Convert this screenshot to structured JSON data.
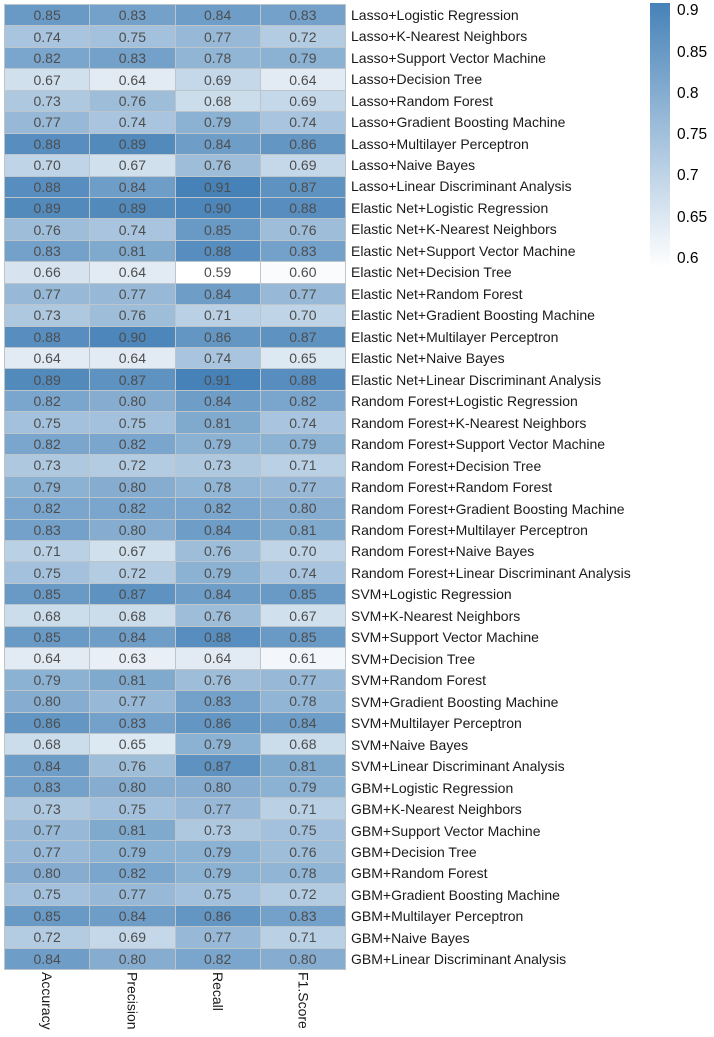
{
  "chart_data": {
    "type": "heatmap",
    "title": "",
    "columns": [
      "Accuracy",
      "Precision",
      "Recall",
      "F1.Score"
    ],
    "rows": [
      {
        "label": "Lasso+Logistic Regression",
        "values": [
          0.85,
          0.83,
          0.84,
          0.83
        ]
      },
      {
        "label": "Lasso+K-Nearest Neighbors",
        "values": [
          0.74,
          0.75,
          0.77,
          0.72
        ]
      },
      {
        "label": "Lasso+Support Vector Machine",
        "values": [
          0.82,
          0.83,
          0.78,
          0.79
        ]
      },
      {
        "label": "Lasso+Decision Tree",
        "values": [
          0.67,
          0.64,
          0.69,
          0.64
        ]
      },
      {
        "label": "Lasso+Random Forest",
        "values": [
          0.73,
          0.76,
          0.68,
          0.69
        ]
      },
      {
        "label": "Lasso+Gradient Boosting Machine",
        "values": [
          0.77,
          0.74,
          0.79,
          0.74
        ]
      },
      {
        "label": "Lasso+Multilayer Perceptron",
        "values": [
          0.88,
          0.89,
          0.84,
          0.86
        ]
      },
      {
        "label": "Lasso+Naive Bayes",
        "values": [
          0.7,
          0.67,
          0.76,
          0.69
        ]
      },
      {
        "label": "Lasso+Linear Discriminant Analysis",
        "values": [
          0.88,
          0.84,
          0.91,
          0.87
        ]
      },
      {
        "label": "Elastic Net+Logistic Regression",
        "values": [
          0.89,
          0.89,
          0.9,
          0.88
        ]
      },
      {
        "label": "Elastic Net+K-Nearest Neighbors",
        "values": [
          0.76,
          0.74,
          0.85,
          0.76
        ]
      },
      {
        "label": "Elastic Net+Support Vector Machine",
        "values": [
          0.83,
          0.81,
          0.88,
          0.83
        ]
      },
      {
        "label": "Elastic Net+Decision Tree",
        "values": [
          0.66,
          0.64,
          0.59,
          0.6
        ]
      },
      {
        "label": "Elastic Net+Random Forest",
        "values": [
          0.77,
          0.77,
          0.84,
          0.77
        ]
      },
      {
        "label": "Elastic Net+Gradient Boosting Machine",
        "values": [
          0.73,
          0.76,
          0.71,
          0.7
        ]
      },
      {
        "label": "Elastic Net+Multilayer Perceptron",
        "values": [
          0.88,
          0.9,
          0.86,
          0.87
        ]
      },
      {
        "label": "Elastic Net+Naive Bayes",
        "values": [
          0.64,
          0.64,
          0.74,
          0.65
        ]
      },
      {
        "label": "Elastic Net+Linear Discriminant Analysis",
        "values": [
          0.89,
          0.87,
          0.91,
          0.88
        ]
      },
      {
        "label": "Random Forest+Logistic Regression",
        "values": [
          0.82,
          0.8,
          0.84,
          0.82
        ]
      },
      {
        "label": "Random Forest+K-Nearest Neighbors",
        "values": [
          0.75,
          0.75,
          0.81,
          0.74
        ]
      },
      {
        "label": "Random Forest+Support Vector Machine",
        "values": [
          0.82,
          0.82,
          0.79,
          0.79
        ]
      },
      {
        "label": "Random Forest+Decision Tree",
        "values": [
          0.73,
          0.72,
          0.73,
          0.71
        ]
      },
      {
        "label": "Random Forest+Random Forest",
        "values": [
          0.79,
          0.8,
          0.78,
          0.77
        ]
      },
      {
        "label": "Random Forest+Gradient Boosting Machine",
        "values": [
          0.82,
          0.82,
          0.82,
          0.8
        ]
      },
      {
        "label": "Random Forest+Multilayer Perceptron",
        "values": [
          0.83,
          0.8,
          0.84,
          0.81
        ]
      },
      {
        "label": "Random Forest+Naive Bayes",
        "values": [
          0.71,
          0.67,
          0.76,
          0.7
        ]
      },
      {
        "label": "Random Forest+Linear Discriminant Analysis",
        "values": [
          0.75,
          0.72,
          0.79,
          0.74
        ]
      },
      {
        "label": "SVM+Logistic Regression",
        "values": [
          0.85,
          0.87,
          0.84,
          0.85
        ]
      },
      {
        "label": "SVM+K-Nearest Neighbors",
        "values": [
          0.68,
          0.68,
          0.76,
          0.67
        ]
      },
      {
        "label": "SVM+Support Vector Machine",
        "values": [
          0.85,
          0.84,
          0.88,
          0.85
        ]
      },
      {
        "label": "SVM+Decision Tree",
        "values": [
          0.64,
          0.63,
          0.64,
          0.61
        ]
      },
      {
        "label": "SVM+Random Forest",
        "values": [
          0.79,
          0.81,
          0.76,
          0.77
        ]
      },
      {
        "label": "SVM+Gradient Boosting Machine",
        "values": [
          0.8,
          0.77,
          0.83,
          0.78
        ]
      },
      {
        "label": "SVM+Multilayer Perceptron",
        "values": [
          0.86,
          0.83,
          0.86,
          0.84
        ]
      },
      {
        "label": "SVM+Naive Bayes",
        "values": [
          0.68,
          0.65,
          0.79,
          0.68
        ]
      },
      {
        "label": "SVM+Linear Discriminant Analysis",
        "values": [
          0.84,
          0.76,
          0.87,
          0.81
        ]
      },
      {
        "label": "GBM+Logistic Regression",
        "values": [
          0.83,
          0.8,
          0.8,
          0.79
        ]
      },
      {
        "label": "GBM+K-Nearest Neighbors",
        "values": [
          0.73,
          0.75,
          0.77,
          0.71
        ]
      },
      {
        "label": "GBM+Support Vector Machine",
        "values": [
          0.77,
          0.81,
          0.73,
          0.75
        ]
      },
      {
        "label": "GBM+Decision Tree",
        "values": [
          0.77,
          0.79,
          0.79,
          0.76
        ]
      },
      {
        "label": "GBM+Random Forest",
        "values": [
          0.8,
          0.82,
          0.79,
          0.78
        ]
      },
      {
        "label": "GBM+Gradient Boosting Machine",
        "values": [
          0.75,
          0.77,
          0.75,
          0.72
        ]
      },
      {
        "label": "GBM+Multilayer Perceptron",
        "values": [
          0.85,
          0.84,
          0.86,
          0.83
        ]
      },
      {
        "label": "GBM+Naive Bayes",
        "values": [
          0.72,
          0.69,
          0.77,
          0.71
        ]
      },
      {
        "label": "GBM+Linear Discriminant Analysis",
        "values": [
          0.84,
          0.8,
          0.82,
          0.8
        ]
      }
    ],
    "color_scale": {
      "low_color": "#ffffff",
      "high_color": "#4682b8",
      "domain": [
        0.59,
        0.91
      ]
    },
    "legend": {
      "position": "right",
      "ticks": [
        {
          "label": "0.9",
          "value": 0.9
        },
        {
          "label": "0.85",
          "value": 0.85
        },
        {
          "label": "0.8",
          "value": 0.8
        },
        {
          "label": "0.75",
          "value": 0.75
        },
        {
          "label": "0.7",
          "value": 0.7
        },
        {
          "label": "0.65",
          "value": 0.65
        },
        {
          "label": "0.6",
          "value": 0.6
        }
      ]
    },
    "layout": {
      "grid_lines": "on",
      "grid_line_color": "#bcc4cc",
      "cell_text_color": "#4d4d4d",
      "label_text_color": "#1a1a1a"
    }
  }
}
